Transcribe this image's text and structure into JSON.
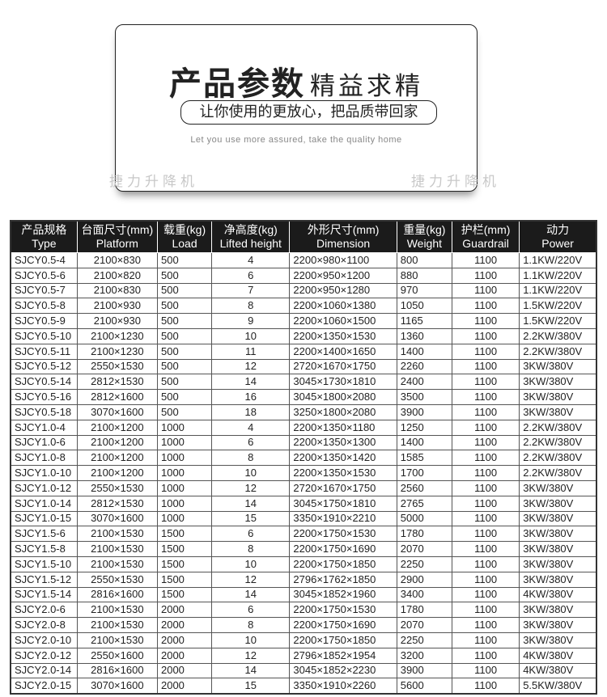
{
  "header": {
    "title_bold": "产品参数",
    "title_light": "精益求精",
    "slogan": "让你使用的更放心，把品质带回家",
    "english": "Let you use more assured, take the quality home",
    "watermark": "捷力升降机"
  },
  "table": {
    "columns": [
      {
        "zh": "产品规格",
        "en": "Type"
      },
      {
        "zh": "台面尺寸(mm)",
        "en": "Platform"
      },
      {
        "zh": "载重(kg)",
        "en": "Load"
      },
      {
        "zh": "净高度(kg)",
        "en": "Lifted height"
      },
      {
        "zh": "外形尺寸(mm)",
        "en": "Dimension"
      },
      {
        "zh": "重量(kg)",
        "en": "Weight"
      },
      {
        "zh": "护栏(mm)",
        "en": "Guardrail"
      },
      {
        "zh": "动力",
        "en": "Power"
      }
    ],
    "rows": [
      [
        "SJCY0.5-4",
        "2100×830",
        "500",
        "4",
        "2200×980×1100",
        "800",
        "1100",
        "1.1KW/220V"
      ],
      [
        "SJCY0.5-6",
        "2100×820",
        "500",
        "6",
        "2200×950×1200",
        "880",
        "1100",
        "1.1KW/220V"
      ],
      [
        "SJCY0.5-7",
        "2100×830",
        "500",
        "7",
        "2200×950×1280",
        "970",
        "1100",
        "1.1KW/220V"
      ],
      [
        "SJCY0.5-8",
        "2100×930",
        "500",
        "8",
        "2200×1060×1380",
        "1050",
        "1100",
        "1.5KW/220V"
      ],
      [
        "SJCY0.5-9",
        "2100×930",
        "500",
        "9",
        "2200×1060×1500",
        "1165",
        "1100",
        "1.5KW/220V"
      ],
      [
        "SJCY0.5-10",
        "2100×1230",
        "500",
        "10",
        "2200×1350×1530",
        "1360",
        "1100",
        "2.2KW/380V"
      ],
      [
        "SJCY0.5-11",
        "2100×1230",
        "500",
        "11",
        "2200×1400×1650",
        "1400",
        "1100",
        "2.2KW/380V"
      ],
      [
        "SJCY0.5-12",
        "2550×1530",
        "500",
        "12",
        "2720×1670×1750",
        "2260",
        "1100",
        "3KW/380V"
      ],
      [
        "SJCY0.5-14",
        "2812×1530",
        "500",
        "14",
        "3045×1730×1810",
        "2400",
        "1100",
        "3KW/380V"
      ],
      [
        "SJCY0.5-16",
        "2812×1600",
        "500",
        "16",
        "3045×1800×2080",
        "3500",
        "1100",
        "3KW/380V"
      ],
      [
        "SJCY0.5-18",
        "3070×1600",
        "500",
        "18",
        "3250×1800×2080",
        "3900",
        "1100",
        "3KW/380V"
      ],
      [
        "SJCY1.0-4",
        "2100×1200",
        "1000",
        "4",
        "2200×1350×1180",
        "1250",
        "1100",
        "2.2KW/380V"
      ],
      [
        "SJCY1.0-6",
        "2100×1200",
        "1000",
        "6",
        "2200×1350×1300",
        "1400",
        "1100",
        "2.2KW/380V"
      ],
      [
        "SJCY1.0-8",
        "2100×1200",
        "1000",
        "8",
        "2200×1350×1420",
        "1585",
        "1100",
        "2.2KW/380V"
      ],
      [
        "SJCY1.0-10",
        "2100×1200",
        "1000",
        "10",
        "2200×1350×1530",
        "1700",
        "1100",
        "2.2KW/380V"
      ],
      [
        "SJCY1.0-12",
        "2550×1530",
        "1000",
        "12",
        "2720×1670×1750",
        "2560",
        "1100",
        "3KW/380V"
      ],
      [
        "SJCY1.0-14",
        "2812×1530",
        "1000",
        "14",
        "3045×1750×1810",
        "2765",
        "1100",
        "3KW/380V"
      ],
      [
        "SJCY1.0-15",
        "3070×1600",
        "1000",
        "15",
        "3350×1910×2210",
        "5000",
        "1100",
        "3KW/380V"
      ],
      [
        "SJCY1.5-6",
        "2100×1530",
        "1500",
        "6",
        "2200×1750×1530",
        "1780",
        "1100",
        "3KW/380V"
      ],
      [
        "SJCY1.5-8",
        "2100×1530",
        "1500",
        "8",
        "2200×1750×1690",
        "2070",
        "1100",
        "3KW/380V"
      ],
      [
        "SJCY1.5-10",
        "2100×1530",
        "1500",
        "10",
        "2200×1750×1850",
        "2250",
        "1100",
        "3KW/380V"
      ],
      [
        "SJCY1.5-12",
        "2550×1530",
        "1500",
        "12",
        "2796×1762×1850",
        "2900",
        "1100",
        "3KW/380V"
      ],
      [
        "SJCY1.5-14",
        "2816×1600",
        "1500",
        "14",
        "3045×1852×1960",
        "3400",
        "1100",
        "4KW/380V"
      ],
      [
        "SJCY2.0-6",
        "2100×1530",
        "2000",
        "6",
        "2200×1750×1530",
        "1780",
        "1100",
        "3KW/380V"
      ],
      [
        "SJCY2.0-8",
        "2100×1530",
        "2000",
        "8",
        "2200×1750×1690",
        "2070",
        "1100",
        "3KW/380V"
      ],
      [
        "SJCY2.0-10",
        "2100×1530",
        "2000",
        "10",
        "2200×1750×1850",
        "2250",
        "1100",
        "3KW/380V"
      ],
      [
        "SJCY2.0-12",
        "2550×1600",
        "2000",
        "12",
        "2796×1852×1954",
        "3200",
        "1100",
        "4KW/380V"
      ],
      [
        "SJCY2.0-14",
        "2816×1600",
        "2000",
        "14",
        "3045×1852×2230",
        "3900",
        "1100",
        "4KW/380V"
      ],
      [
        "SJCY2.0-15",
        "3070×1600",
        "2000",
        "15",
        "3350×1910×2260",
        "5600",
        "1100",
        "5.5KW/380V"
      ]
    ]
  }
}
